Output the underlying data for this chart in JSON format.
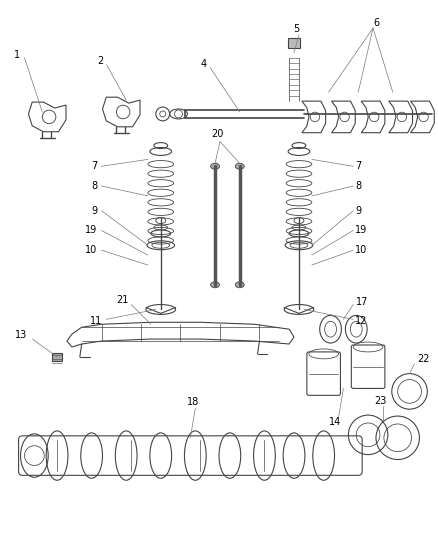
{
  "bg_color": "#ffffff",
  "line_color": "#444444",
  "gray_fill": "#cccccc",
  "fig_width": 4.39,
  "fig_height": 5.33,
  "dpi": 100
}
